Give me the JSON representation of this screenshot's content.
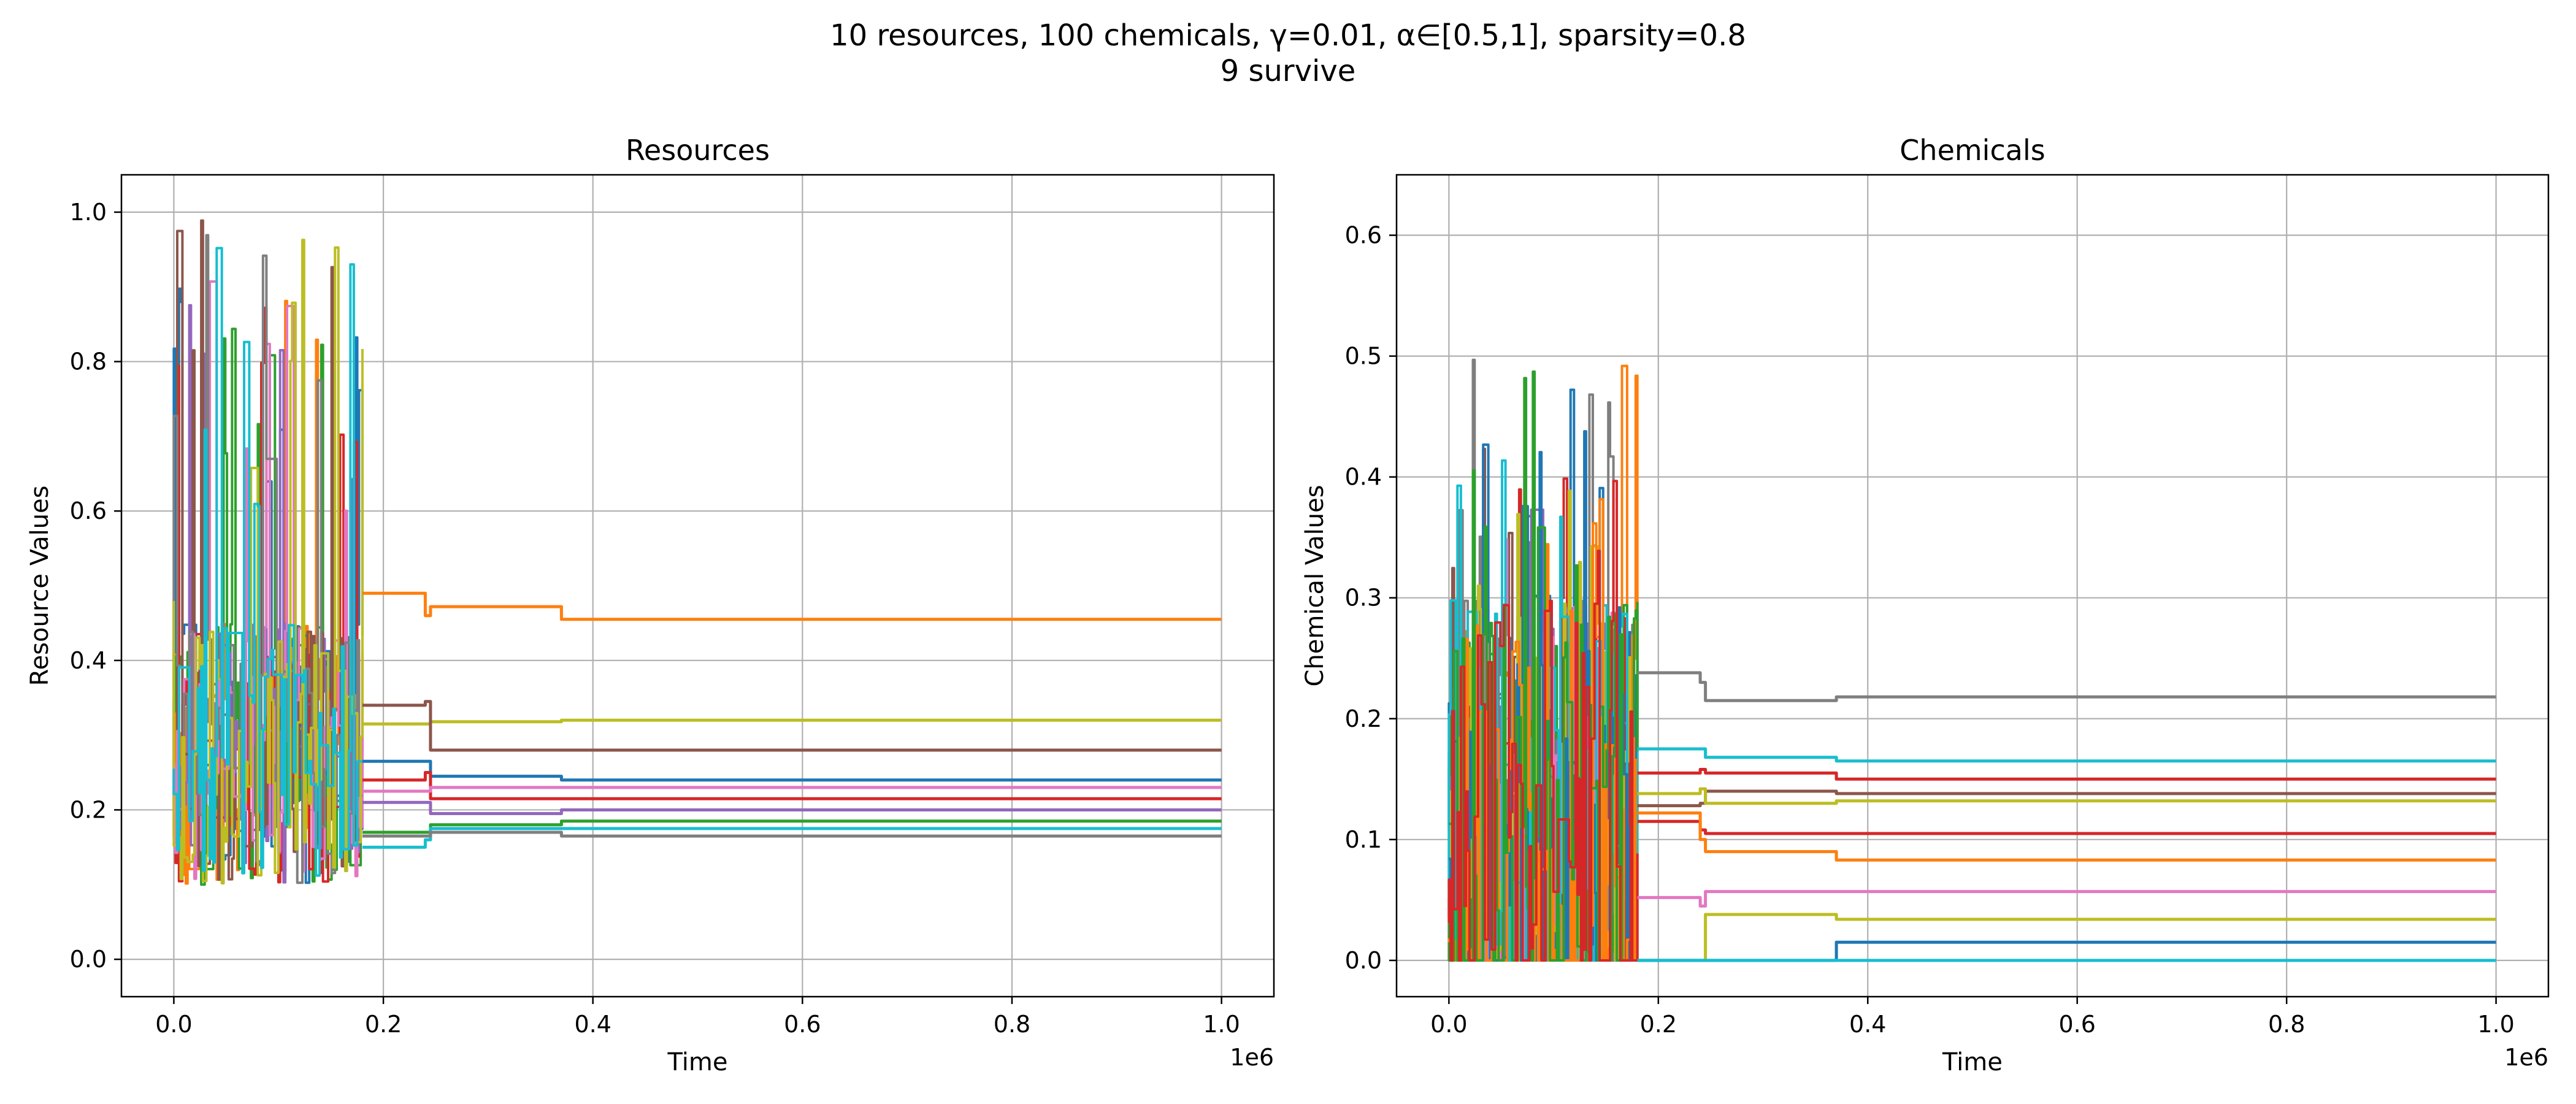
{
  "figure": {
    "title_line1": "10 resources, 100 chemicals, γ=0.01, α∈[0.5,1], sparsity=0.8",
    "title_line2": "9 survive"
  },
  "chart_data": [
    {
      "type": "line",
      "title": "Resources",
      "xlabel": "Time",
      "ylabel": "Resource Values",
      "x_scale_label": "1e6",
      "xlim": [
        -0.05,
        1.05
      ],
      "ylim": [
        -0.05,
        1.05
      ],
      "xticks": [
        0.0,
        0.2,
        0.4,
        0.6,
        0.8,
        1.0
      ],
      "xtick_labels": [
        "0.0",
        "0.2",
        "0.4",
        "0.6",
        "0.8",
        "1.0"
      ],
      "yticks": [
        0.0,
        0.2,
        0.4,
        0.6,
        0.8,
        1.0
      ],
      "ytick_labels": [
        "0.0",
        "0.2",
        "0.4",
        "0.6",
        "0.8",
        "1.0"
      ],
      "grid": true,
      "noise_region": [
        0.0,
        0.18
      ],
      "series": [
        {
          "color": "#ff7f0e",
          "x": [
            0.18,
            0.24,
            0.24,
            0.245,
            0.245,
            0.37,
            0.37,
            1.0
          ],
          "y": [
            0.49,
            0.49,
            0.46,
            0.46,
            0.472,
            0.472,
            0.455,
            0.455
          ]
        },
        {
          "color": "#bcbd22",
          "x": [
            0.18,
            0.245,
            0.245,
            0.37,
            0.37,
            1.0
          ],
          "y": [
            0.315,
            0.315,
            0.318,
            0.318,
            0.32,
            0.32
          ]
        },
        {
          "color": "#8c564b",
          "x": [
            0.18,
            0.24,
            0.24,
            0.245,
            0.245,
            1.0
          ],
          "y": [
            0.34,
            0.34,
            0.345,
            0.345,
            0.28,
            0.28
          ]
        },
        {
          "color": "#1f77b4",
          "x": [
            0.18,
            0.245,
            0.245,
            0.37,
            0.37,
            1.0
          ],
          "y": [
            0.265,
            0.265,
            0.245,
            0.245,
            0.24,
            0.24
          ]
        },
        {
          "color": "#d62728",
          "x": [
            0.18,
            0.24,
            0.24,
            0.245,
            0.245,
            1.0
          ],
          "y": [
            0.24,
            0.24,
            0.25,
            0.25,
            0.215,
            0.215
          ]
        },
        {
          "color": "#e377c2",
          "x": [
            0.18,
            0.245,
            0.245,
            1.0
          ],
          "y": [
            0.225,
            0.225,
            0.23,
            0.23
          ]
        },
        {
          "color": "#9467bd",
          "x": [
            0.18,
            0.245,
            0.245,
            0.37,
            0.37,
            1.0
          ],
          "y": [
            0.21,
            0.21,
            0.195,
            0.195,
            0.2,
            0.2
          ]
        },
        {
          "color": "#2ca02c",
          "x": [
            0.18,
            0.245,
            0.245,
            0.37,
            0.37,
            1.0
          ],
          "y": [
            0.17,
            0.17,
            0.18,
            0.18,
            0.185,
            0.185
          ]
        },
        {
          "color": "#17becf",
          "x": [
            0.18,
            0.24,
            0.24,
            0.245,
            0.245,
            1.0
          ],
          "y": [
            0.15,
            0.15,
            0.16,
            0.16,
            0.175,
            0.175
          ]
        },
        {
          "color": "#7f7f7f",
          "x": [
            0.18,
            0.245,
            0.245,
            0.37,
            0.37,
            1.0
          ],
          "y": [
            0.165,
            0.165,
            0.17,
            0.17,
            0.165,
            0.165
          ]
        }
      ]
    },
    {
      "type": "line",
      "title": "Chemicals",
      "xlabel": "Time",
      "ylabel": "Chemical Values",
      "x_scale_label": "1e6",
      "xlim": [
        -0.05,
        1.05
      ],
      "ylim": [
        -0.03,
        0.65
      ],
      "xticks": [
        0.0,
        0.2,
        0.4,
        0.6,
        0.8,
        1.0
      ],
      "xtick_labels": [
        "0.0",
        "0.2",
        "0.4",
        "0.6",
        "0.8",
        "1.0"
      ],
      "yticks": [
        0.0,
        0.1,
        0.2,
        0.3,
        0.4,
        0.5,
        0.6
      ],
      "ytick_labels": [
        "0.0",
        "0.1",
        "0.2",
        "0.3",
        "0.4",
        "0.5",
        "0.6"
      ],
      "grid": true,
      "noise_region": [
        0.0,
        0.18
      ],
      "series": [
        {
          "color": "#7f7f7f",
          "x": [
            0.18,
            0.24,
            0.24,
            0.245,
            0.245,
            0.37,
            0.37,
            1.0
          ],
          "y": [
            0.238,
            0.238,
            0.23,
            0.23,
            0.215,
            0.215,
            0.218,
            0.218
          ]
        },
        {
          "color": "#17becf",
          "x": [
            0.18,
            0.245,
            0.245,
            0.37,
            0.37,
            1.0
          ],
          "y": [
            0.175,
            0.175,
            0.168,
            0.168,
            0.165,
            0.165
          ]
        },
        {
          "color": "#d62728",
          "x": [
            0.18,
            0.24,
            0.24,
            0.245,
            0.245,
            0.37,
            0.37,
            1.0
          ],
          "y": [
            0.155,
            0.155,
            0.158,
            0.158,
            0.155,
            0.155,
            0.15,
            0.15
          ]
        },
        {
          "color": "#8c564b",
          "x": [
            0.18,
            0.24,
            0.24,
            0.245,
            0.245,
            0.37,
            0.37,
            1.0
          ],
          "y": [
            0.128,
            0.128,
            0.13,
            0.13,
            0.14,
            0.14,
            0.138,
            0.138
          ]
        },
        {
          "color": "#bcbd22",
          "x": [
            0.18,
            0.24,
            0.24,
            0.245,
            0.245,
            0.37,
            0.37,
            1.0
          ],
          "y": [
            0.138,
            0.138,
            0.142,
            0.142,
            0.13,
            0.13,
            0.132,
            0.132
          ]
        },
        {
          "color": "#d62728",
          "x": [
            0.18,
            0.24,
            0.24,
            0.245,
            0.245,
            1.0
          ],
          "y": [
            0.115,
            0.115,
            0.108,
            0.108,
            0.105,
            0.105
          ]
        },
        {
          "color": "#ff7f0e",
          "x": [
            0.18,
            0.24,
            0.24,
            0.245,
            0.245,
            0.37,
            0.37,
            1.0
          ],
          "y": [
            0.122,
            0.122,
            0.1,
            0.1,
            0.09,
            0.09,
            0.083,
            0.083
          ]
        },
        {
          "color": "#e377c2",
          "x": [
            0.18,
            0.24,
            0.24,
            0.245,
            0.245,
            1.0
          ],
          "y": [
            0.052,
            0.052,
            0.045,
            0.045,
            0.057,
            0.057
          ]
        },
        {
          "color": "#bcbd22",
          "x": [
            0.18,
            0.245,
            0.245,
            0.37,
            0.37,
            1.0
          ],
          "y": [
            0.0,
            0.0,
            0.038,
            0.038,
            0.034,
            0.034
          ]
        },
        {
          "color": "#1f77b4",
          "x": [
            0.18,
            0.37,
            0.37,
            1.0
          ],
          "y": [
            0.0,
            0.0,
            0.015,
            0.015
          ]
        },
        {
          "color": "#17becf",
          "x": [
            0.18,
            1.0
          ],
          "y": [
            0.0,
            0.0
          ]
        }
      ]
    }
  ]
}
